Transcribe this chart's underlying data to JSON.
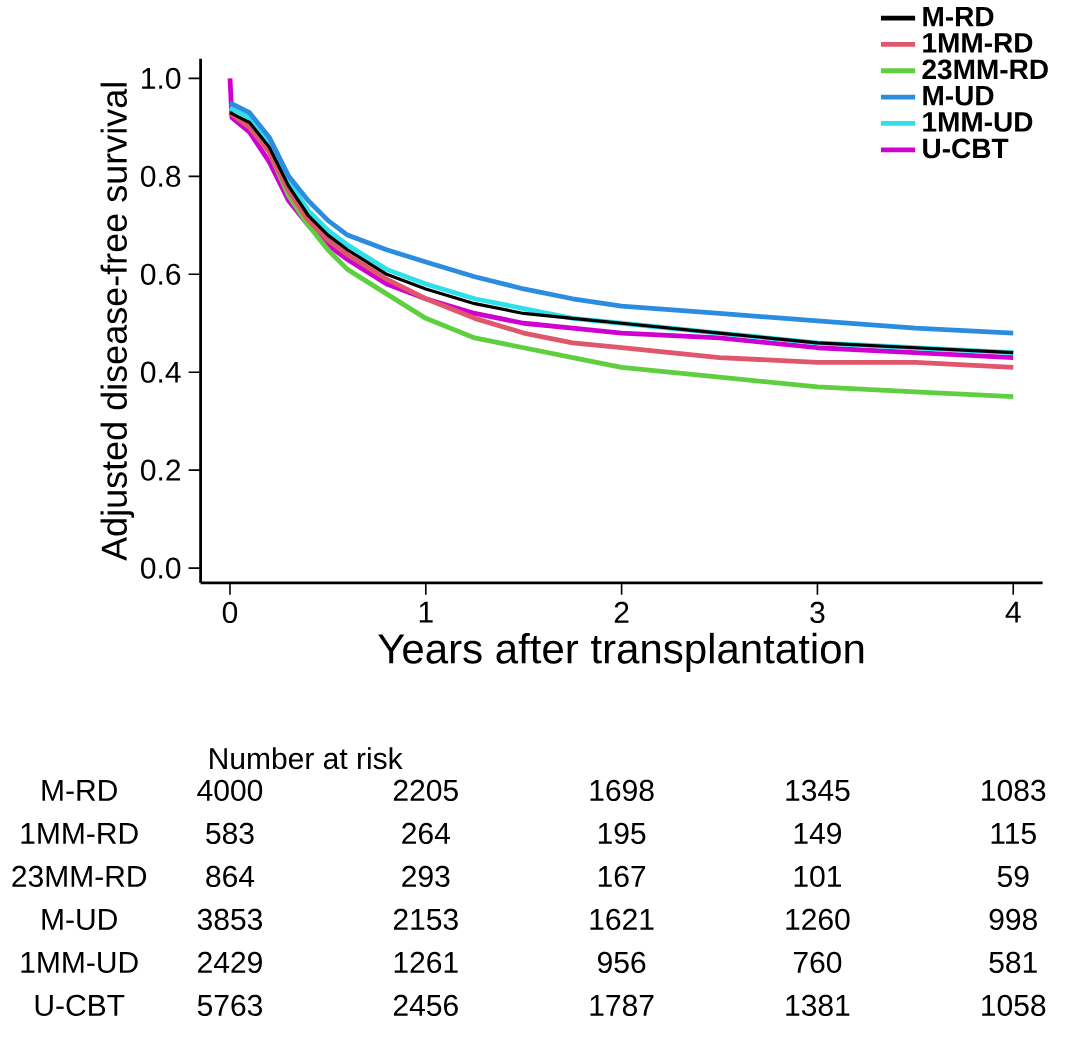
{
  "chart_data": {
    "type": "line",
    "xlabel": "Years after transplantation",
    "ylabel": "Adjusted disease-free survival",
    "xlim": [
      -0.15,
      4.15
    ],
    "ylim": [
      -0.03,
      1.04
    ],
    "xticks": [
      0,
      1,
      2,
      3,
      4
    ],
    "yticks": [
      {
        "value": 0,
        "label": "0.0"
      },
      0.2,
      0.4,
      0.6,
      0.8,
      {
        "value": 1,
        "label": "1.0"
      }
    ],
    "legend": "top right",
    "grid": false,
    "marker": "none",
    "line_style": "solid",
    "series": [
      {
        "name": "M-RD",
        "color": "#000000",
        "x": [
          0,
          0.1,
          0.2,
          0.3,
          0.4,
          0.5,
          0.6,
          0.8,
          1.0,
          1.25,
          1.5,
          1.75,
          2.0,
          2.5,
          3.0,
          3.5,
          4.0
        ],
        "values": [
          0.93,
          0.91,
          0.86,
          0.78,
          0.72,
          0.68,
          0.65,
          0.6,
          0.57,
          0.54,
          0.52,
          0.51,
          0.5,
          0.48,
          0.46,
          0.45,
          0.44
        ]
      },
      {
        "name": "1MM-RD",
        "color": "#e0566b",
        "x": [
          0,
          0.1,
          0.2,
          0.3,
          0.4,
          0.5,
          0.6,
          0.8,
          1.0,
          1.25,
          1.5,
          1.75,
          2.0,
          2.5,
          3.0,
          3.5,
          4.0
        ],
        "values": [
          0.93,
          0.9,
          0.85,
          0.77,
          0.71,
          0.67,
          0.64,
          0.59,
          0.55,
          0.51,
          0.48,
          0.46,
          0.45,
          0.43,
          0.42,
          0.42,
          0.41
        ]
      },
      {
        "name": "23MM-RD",
        "color": "#5fcf3f",
        "x": [
          0,
          0.1,
          0.2,
          0.3,
          0.4,
          0.5,
          0.6,
          0.8,
          1.0,
          1.25,
          1.5,
          1.75,
          2.0,
          2.5,
          3.0,
          3.5,
          4.0
        ],
        "values": [
          0.93,
          0.9,
          0.85,
          0.76,
          0.7,
          0.65,
          0.61,
          0.56,
          0.51,
          0.47,
          0.45,
          0.43,
          0.41,
          0.39,
          0.37,
          0.36,
          0.35
        ]
      },
      {
        "name": "M-UD",
        "color": "#2b8de0",
        "x": [
          0,
          0.1,
          0.2,
          0.3,
          0.4,
          0.5,
          0.6,
          0.8,
          1.0,
          1.25,
          1.5,
          1.75,
          2.0,
          2.5,
          3.0,
          3.5,
          4.0
        ],
        "values": [
          0.95,
          0.93,
          0.88,
          0.8,
          0.75,
          0.71,
          0.68,
          0.65,
          0.625,
          0.595,
          0.57,
          0.55,
          0.535,
          0.52,
          0.505,
          0.49,
          0.48
        ]
      },
      {
        "name": "1MM-UD",
        "color": "#2ee0e8",
        "x": [
          0,
          0.1,
          0.2,
          0.3,
          0.4,
          0.5,
          0.6,
          0.8,
          1.0,
          1.25,
          1.5,
          1.75,
          2.0,
          2.5,
          3.0,
          3.5,
          4.0
        ],
        "values": [
          0.94,
          0.92,
          0.87,
          0.79,
          0.73,
          0.69,
          0.66,
          0.61,
          0.58,
          0.55,
          0.53,
          0.51,
          0.5,
          0.48,
          0.46,
          0.45,
          0.44
        ]
      },
      {
        "name": "U-CBT",
        "color": "#d000d0",
        "x": [
          0,
          0.01,
          0.1,
          0.2,
          0.3,
          0.4,
          0.5,
          0.6,
          0.8,
          1.0,
          1.25,
          1.5,
          1.75,
          2.0,
          2.5,
          3.0,
          3.5,
          4.0
        ],
        "values": [
          1.0,
          0.92,
          0.89,
          0.83,
          0.75,
          0.7,
          0.66,
          0.63,
          0.58,
          0.55,
          0.52,
          0.5,
          0.49,
          0.48,
          0.47,
          0.45,
          0.44,
          0.43
        ]
      }
    ],
    "annotations": [
      "Number at risk",
      "4000",
      "2205",
      "1698",
      "1345",
      "1083",
      "583",
      "264",
      "195",
      "149",
      "115",
      "864",
      "293",
      "167",
      "101",
      "59",
      "3853",
      "2153",
      "1621",
      "1260",
      "998",
      "2429",
      "1261",
      "956",
      "760",
      "581",
      "5763",
      "2456",
      "1787",
      "1381",
      "1058"
    ]
  }
}
